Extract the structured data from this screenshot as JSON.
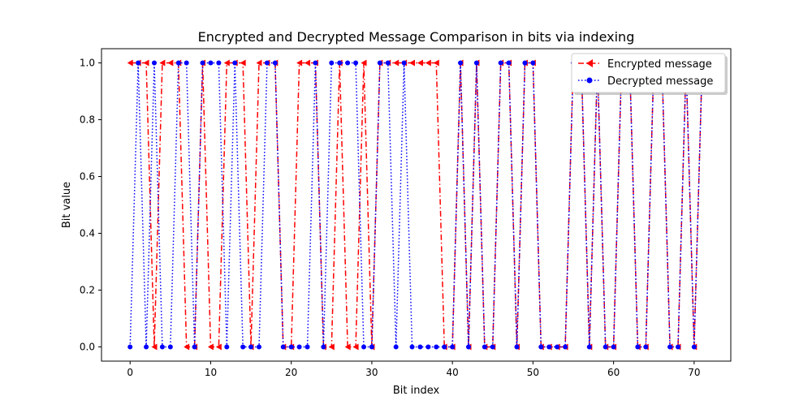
{
  "chart_data": {
    "type": "line",
    "title": "Encrypted and Decrypted Message Comparison in bits via indexing",
    "xlabel": "Bit index",
    "ylabel": "Bit value",
    "xlim": [
      -3.55,
      74.55
    ],
    "ylim": [
      -0.05,
      1.05
    ],
    "xticks": [
      0,
      10,
      20,
      30,
      40,
      50,
      60,
      70
    ],
    "yticks": [
      0.0,
      0.2,
      0.4,
      0.6,
      0.8,
      1.0
    ],
    "xtick_labels": [
      "0",
      "10",
      "20",
      "30",
      "40",
      "50",
      "60",
      "70"
    ],
    "ytick_labels": [
      "0.0",
      "0.2",
      "0.4",
      "0.6",
      "0.8",
      "1.0"
    ],
    "grid": false,
    "legend_position": "top-right",
    "x": [
      0,
      1,
      2,
      3,
      4,
      5,
      6,
      7,
      8,
      9,
      10,
      11,
      12,
      13,
      14,
      15,
      16,
      17,
      18,
      19,
      20,
      21,
      22,
      23,
      24,
      25,
      26,
      27,
      28,
      29,
      30,
      31,
      32,
      33,
      34,
      35,
      36,
      37,
      38,
      39,
      40,
      41,
      42,
      43,
      44,
      45,
      46,
      47,
      48,
      49,
      50,
      51,
      52,
      53,
      54,
      55,
      56,
      57,
      58,
      59,
      60,
      61,
      62,
      63,
      64,
      65,
      66,
      67,
      68,
      69,
      70,
      71
    ],
    "series": [
      {
        "name": "Encrypted message",
        "color": "#ff0000",
        "linestyle": "dashdot",
        "marker": "tri_left",
        "values": [
          1,
          1,
          1,
          0,
          1,
          1,
          1,
          0,
          0,
          1,
          0,
          0,
          1,
          1,
          1,
          0,
          1,
          1,
          1,
          0,
          0,
          1,
          1,
          1,
          0,
          0,
          1,
          0,
          0,
          1,
          0,
          1,
          1,
          1,
          1,
          1,
          1,
          1,
          1,
          0,
          0,
          1,
          0,
          1,
          0,
          0,
          1,
          1,
          0,
          1,
          1,
          0,
          0,
          0,
          0,
          1,
          1,
          0,
          1,
          0,
          0,
          1,
          1,
          0,
          0,
          1,
          1,
          0,
          0,
          1,
          0,
          1
        ]
      },
      {
        "name": "Decrypted message",
        "color": "#0000ff",
        "linestyle": "dotted",
        "marker": "circle",
        "values": [
          0,
          1,
          0,
          1,
          0,
          0,
          1,
          1,
          0,
          1,
          1,
          1,
          0,
          1,
          0,
          0,
          0,
          1,
          1,
          0,
          0,
          0,
          0,
          1,
          0,
          1,
          1,
          1,
          1,
          0,
          0,
          1,
          1,
          0,
          1,
          0,
          0,
          0,
          0,
          0,
          0,
          1,
          0,
          1,
          0,
          0,
          1,
          1,
          0,
          1,
          1,
          0,
          0,
          0,
          0,
          1,
          1,
          0,
          1,
          0,
          0,
          1,
          1,
          0,
          0,
          1,
          1,
          0,
          0,
          1,
          0,
          1
        ]
      }
    ]
  }
}
